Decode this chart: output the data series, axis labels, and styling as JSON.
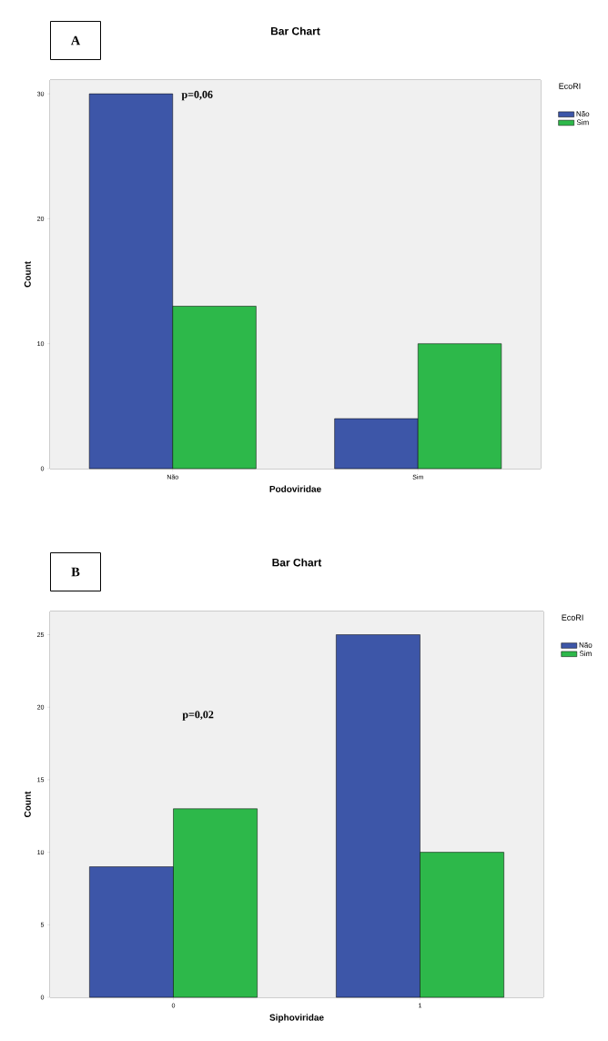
{
  "chart_data": [
    {
      "type": "bar",
      "title": "Bar Chart",
      "xlabel": "Podoviridae",
      "ylabel": "Count",
      "legend_title": "EcoRI",
      "legend": "right",
      "categories": [
        "Não",
        "Sim"
      ],
      "series": [
        {
          "name": "Não",
          "color": "#3d56a8",
          "values": [
            30,
            4
          ]
        },
        {
          "name": "Sim",
          "color": "#2db84a",
          "values": [
            13,
            10
          ]
        }
      ],
      "ylim": [
        0,
        31.1
      ],
      "yticks": [
        0,
        10,
        20,
        30
      ],
      "annotations": [
        "A",
        "p=0,06"
      ]
    },
    {
      "type": "bar",
      "title": "Bar Chart",
      "xlabel": "Siphoviridae",
      "ylabel": "Count",
      "legend_title": "EcoRI",
      "legend": "right",
      "categories": [
        "0",
        "1"
      ],
      "series": [
        {
          "name": "Não",
          "color": "#3d56a8",
          "values": [
            9,
            25
          ]
        },
        {
          "name": "Sim",
          "color": "#2db84a",
          "values": [
            13,
            10
          ]
        }
      ],
      "ylim": [
        0,
        26.6
      ],
      "yticks": [
        0,
        5,
        10,
        15,
        20,
        25
      ],
      "annotations": [
        "B",
        "p=0,02"
      ]
    }
  ]
}
